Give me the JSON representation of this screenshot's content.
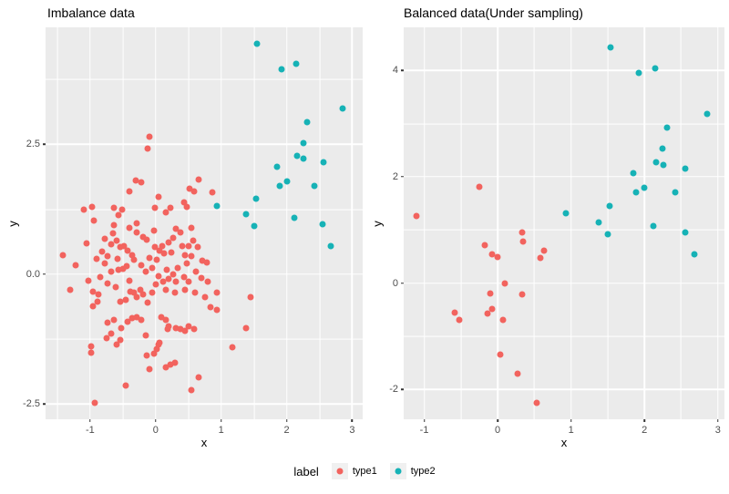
{
  "legend": {
    "title": "label",
    "items": [
      {
        "label": "type1",
        "color": "#F2635E"
      },
      {
        "label": "type2",
        "color": "#16B2B6"
      }
    ]
  },
  "colors": {
    "panel_background": "#EBEBEB",
    "gridline": "#FFFFFF",
    "tick_text": "#4D4D4D",
    "type1": "#F2635E",
    "type2": "#16B2B6"
  },
  "chart_data": [
    {
      "type": "scatter",
      "title": "Imbalance data",
      "xlabel": "x",
      "ylabel": "y",
      "grid": true,
      "legend_position": "bottom",
      "xlim": [
        -1.68,
        3.16
      ],
      "ylim": [
        -2.79,
        4.75
      ],
      "x_ticks": {
        "values": [
          -1,
          0,
          1,
          2,
          3
        ],
        "labels": [
          "-1",
          "0",
          "1",
          "2",
          "3"
        ]
      },
      "y_ticks": {
        "values": [
          2.5,
          0,
          -2.5
        ],
        "labels": [
          "2.5",
          "0.0",
          "-2.5"
        ]
      },
      "x_minor": [
        -1.5,
        -0.5,
        0.5,
        1.5,
        2.5
      ],
      "y_minor": [
        3.75,
        1.25,
        -1.25
      ],
      "series": [
        {
          "name": "type1",
          "color": "#F2635E",
          "points": [
            [
              -0.09,
              2.65
            ],
            [
              -0.12,
              2.42
            ],
            [
              -0.31,
              1.8
            ],
            [
              -0.22,
              1.77
            ],
            [
              -0.4,
              1.6
            ],
            [
              0.66,
              1.83
            ],
            [
              0.52,
              1.65
            ],
            [
              0.59,
              1.6
            ],
            [
              0.86,
              1.57
            ],
            [
              0.04,
              1.48
            ],
            [
              0.43,
              1.39
            ],
            [
              0.48,
              1.3
            ],
            [
              -1.1,
              1.25
            ],
            [
              -0.97,
              1.3
            ],
            [
              -0.63,
              1.28
            ],
            [
              -0.51,
              1.25
            ],
            [
              -0.57,
              1.13
            ],
            [
              -0.01,
              1.28
            ],
            [
              0.15,
              1.19
            ],
            [
              0.22,
              1.28
            ],
            [
              -0.94,
              1.04
            ],
            [
              -0.29,
              0.98
            ],
            [
              -0.63,
              0.95
            ],
            [
              -1.42,
              0.37
            ],
            [
              -0.82,
              0.43
            ],
            [
              -0.73,
              0.35
            ],
            [
              -0.68,
              0.58
            ],
            [
              -0.6,
              0.64
            ],
            [
              -0.54,
              0.52
            ],
            [
              -0.48,
              0.55
            ],
            [
              -0.43,
              0.46
            ],
            [
              -0.36,
              0.37
            ],
            [
              -0.29,
              0.81
            ],
            [
              -0.19,
              0.72
            ],
            [
              -0.13,
              0.67
            ],
            [
              -0.03,
              0.84
            ],
            [
              -0.01,
              0.52
            ],
            [
              0.06,
              0.46
            ],
            [
              0.13,
              0.4
            ],
            [
              0.2,
              0.61
            ],
            [
              0.27,
              0.7
            ],
            [
              0.31,
              0.87
            ],
            [
              0.38,
              0.81
            ],
            [
              0.45,
              0.37
            ],
            [
              0.5,
              0.55
            ],
            [
              0.57,
              0.64
            ],
            [
              0.64,
              0.52
            ],
            [
              0.71,
              0.26
            ],
            [
              0.78,
              0.23
            ],
            [
              -0.77,
              0.2
            ],
            [
              -0.68,
              0.05
            ],
            [
              -0.57,
              0.08
            ],
            [
              -0.5,
              0.11
            ],
            [
              -0.15,
              0.05
            ],
            [
              0.04,
              -0.04
            ],
            [
              0.11,
              -0.15
            ],
            [
              0.2,
              -0.09
            ],
            [
              0.27,
              -0.01
            ],
            [
              0.31,
              -0.15
            ],
            [
              0.43,
              -0.06
            ],
            [
              0.5,
              -0.15
            ],
            [
              -0.73,
              -0.18
            ],
            [
              -0.61,
              -0.24
            ],
            [
              -0.96,
              -0.33
            ],
            [
              -0.87,
              -0.39
            ],
            [
              -0.89,
              -0.53
            ],
            [
              -0.96,
              -0.62
            ],
            [
              -0.54,
              -0.53
            ],
            [
              -0.45,
              -0.5
            ],
            [
              -0.38,
              -0.33
            ],
            [
              -0.33,
              -0.36
            ],
            [
              -0.29,
              -0.44
            ],
            [
              -0.24,
              -0.3
            ],
            [
              -0.19,
              -0.39
            ],
            [
              0.8,
              -0.15
            ],
            [
              0.94,
              -0.36
            ],
            [
              0.75,
              -0.44
            ],
            [
              0.84,
              -0.64
            ],
            [
              0.94,
              -0.69
            ],
            [
              1.45,
              -0.44
            ],
            [
              -0.98,
              -1.38
            ],
            [
              -0.99,
              -1.51
            ],
            [
              -0.75,
              -1.23
            ],
            [
              -0.68,
              -1.15
            ],
            [
              -0.73,
              -0.94
            ],
            [
              -0.63,
              -0.88
            ],
            [
              -0.52,
              -1.03
            ],
            [
              -0.54,
              -1.26
            ],
            [
              -0.59,
              -1.35
            ],
            [
              -0.43,
              -0.91
            ],
            [
              -0.36,
              -0.85
            ],
            [
              -0.29,
              -0.82
            ],
            [
              -0.22,
              -0.88
            ],
            [
              -0.15,
              -1.18
            ],
            [
              -0.13,
              -1.56
            ],
            [
              -0.03,
              -1.53
            ],
            [
              0.01,
              -1.44
            ],
            [
              0.04,
              -1.35
            ],
            [
              0.06,
              -1.32
            ],
            [
              0.08,
              -0.82
            ],
            [
              0.15,
              -0.88
            ],
            [
              0.18,
              -1.06
            ],
            [
              0.2,
              -1.0
            ],
            [
              0.31,
              -1.03
            ],
            [
              0.38,
              -1.06
            ],
            [
              0.45,
              -1.09
            ],
            [
              0.5,
              -1.0
            ],
            [
              0.59,
              -1.06
            ],
            [
              -0.1,
              -1.82
            ],
            [
              0.15,
              -1.79
            ],
            [
              0.22,
              -1.73
            ],
            [
              0.29,
              -1.7
            ],
            [
              0.66,
              -1.99
            ],
            [
              0.55,
              -2.23
            ],
            [
              -0.45,
              -2.14
            ],
            [
              -0.93,
              -2.48
            ],
            [
              1.38,
              -1.03
            ],
            [
              1.17,
              -1.41
            ],
            [
              -1.22,
              0.18
            ],
            [
              -1.05,
              0.6
            ],
            [
              -1.02,
              -0.12
            ],
            [
              -0.9,
              0.3
            ],
            [
              -0.85,
              -0.05
            ],
            [
              -0.78,
              0.68
            ],
            [
              -0.65,
              0.78
            ],
            [
              -0.58,
              0.3
            ],
            [
              -0.44,
              0.15
            ],
            [
              -0.4,
              -0.12
            ],
            [
              -0.33,
              0.28
            ],
            [
              -0.22,
              0.18
            ],
            [
              -0.1,
              0.32
            ],
            [
              -0.05,
              0.12
            ],
            [
              0.02,
              0.28
            ],
            [
              0.1,
              0.55
            ],
            [
              0.17,
              0.08
            ],
            [
              0.24,
              0.42
            ],
            [
              0.33,
              0.12
            ],
            [
              0.4,
              0.55
            ],
            [
              0.47,
              0.2
            ],
            [
              0.55,
              0.35
            ],
            [
              0.62,
              0.05
            ],
            [
              0.7,
              -0.08
            ],
            [
              0.6,
              -0.35
            ],
            [
              0.45,
              -0.3
            ],
            [
              0.3,
              -0.35
            ],
            [
              0.15,
              -0.3
            ],
            [
              0.0,
              -0.2
            ],
            [
              -0.12,
              -0.55
            ],
            [
              -0.05,
              -0.35
            ],
            [
              0.55,
              0.9
            ],
            [
              -0.4,
              0.9
            ],
            [
              -1.3,
              -0.3
            ]
          ]
        },
        {
          "name": "type2",
          "color": "#16B2B6",
          "points": [
            [
              1.54,
              4.43
            ],
            [
              1.92,
              3.95
            ],
            [
              2.15,
              4.04
            ],
            [
              2.86,
              3.19
            ],
            [
              2.31,
              2.92
            ],
            [
              2.25,
              2.53
            ],
            [
              2.16,
              2.27
            ],
            [
              2.26,
              2.22
            ],
            [
              2.56,
              2.15
            ],
            [
              1.85,
              2.06
            ],
            [
              2.0,
              1.79
            ],
            [
              1.89,
              1.7
            ],
            [
              2.42,
              1.7
            ],
            [
              1.53,
              1.45
            ],
            [
              0.93,
              1.31
            ],
            [
              1.38,
              1.15
            ],
            [
              1.5,
              0.92
            ],
            [
              2.12,
              1.08
            ],
            [
              2.55,
              0.96
            ],
            [
              2.68,
              0.55
            ]
          ]
        }
      ]
    },
    {
      "type": "scatter",
      "title": "Balanced data(Under sampling)",
      "xlabel": "x",
      "ylabel": "y",
      "grid": true,
      "legend_position": "bottom",
      "xlim": [
        -1.28,
        3.09
      ],
      "ylim": [
        -2.56,
        4.81
      ],
      "x_ticks": {
        "values": [
          -1,
          0,
          1,
          2,
          3
        ],
        "labels": [
          "-1",
          "0",
          "1",
          "2",
          "3"
        ]
      },
      "y_ticks": {
        "values": [
          4,
          2,
          0,
          -2
        ],
        "labels": [
          "4",
          "2",
          "0",
          "-2"
        ]
      },
      "x_minor": [
        -0.5,
        0.5,
        1.5,
        2.5
      ],
      "y_minor": [
        3,
        1,
        -1
      ],
      "series": [
        {
          "name": "type1",
          "color": "#F2635E",
          "points": [
            [
              -0.25,
              1.81
            ],
            [
              -1.1,
              1.26
            ],
            [
              0.33,
              0.95
            ],
            [
              0.35,
              0.78
            ],
            [
              -0.17,
              0.71
            ],
            [
              -0.07,
              0.54
            ],
            [
              0.0,
              0.49
            ],
            [
              0.63,
              0.61
            ],
            [
              0.58,
              0.47
            ],
            [
              0.1,
              -0.01
            ],
            [
              -0.1,
              -0.19
            ],
            [
              0.34,
              -0.22
            ],
            [
              -0.58,
              -0.55
            ],
            [
              -0.52,
              -0.69
            ],
            [
              -0.14,
              -0.57
            ],
            [
              -0.07,
              -0.49
            ],
            [
              0.07,
              -0.69
            ],
            [
              0.04,
              -1.35
            ],
            [
              0.27,
              -1.71
            ],
            [
              0.53,
              -2.26
            ]
          ]
        },
        {
          "name": "type2",
          "color": "#16B2B6",
          "points": [
            [
              1.54,
              4.43
            ],
            [
              1.92,
              3.95
            ],
            [
              2.15,
              4.04
            ],
            [
              2.86,
              3.19
            ],
            [
              2.31,
              2.92
            ],
            [
              2.25,
              2.53
            ],
            [
              2.16,
              2.27
            ],
            [
              2.26,
              2.22
            ],
            [
              2.56,
              2.15
            ],
            [
              1.85,
              2.06
            ],
            [
              2.0,
              1.79
            ],
            [
              1.89,
              1.7
            ],
            [
              2.42,
              1.7
            ],
            [
              1.53,
              1.45
            ],
            [
              0.93,
              1.31
            ],
            [
              1.38,
              1.15
            ],
            [
              1.5,
              0.92
            ],
            [
              2.12,
              1.08
            ],
            [
              2.55,
              0.96
            ],
            [
              2.68,
              0.55
            ]
          ]
        }
      ]
    }
  ]
}
